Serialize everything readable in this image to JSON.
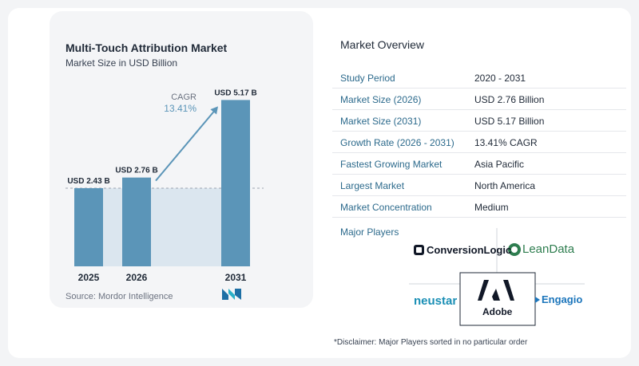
{
  "chart_data": {
    "type": "bar",
    "title": "Multi-Touch Attribution Market",
    "subtitle": "Market Size in USD Billion",
    "categories": [
      "2025",
      "2026",
      "2031"
    ],
    "values": [
      2.43,
      2.76,
      5.17
    ],
    "data_labels": [
      "USD 2.43 B",
      "USD 2.76 B",
      "USD 5.17 B"
    ],
    "cagr_label": "CAGR",
    "cagr_value": "13.41%",
    "ylim": [
      0,
      5.8
    ],
    "grid": false,
    "colors": {
      "bar": "#5b95b8",
      "bar_dark": "#3f7ea6",
      "arrow": "#5b95b8",
      "shade": "#dbe6ef"
    }
  },
  "source": "Source: Mordor Intelligence",
  "overview": {
    "title": "Market Overview",
    "rows": [
      {
        "label": "Study Period",
        "value": "2020 - 2031"
      },
      {
        "label": "Market Size (2026)",
        "value": "USD 2.76 Billion"
      },
      {
        "label": "Market Size (2031)",
        "value": "USD 5.17 Billion"
      },
      {
        "label": "Growth Rate (2026 - 2031)",
        "value": "13.41% CAGR"
      },
      {
        "label": "Fastest Growing Market",
        "value": "Asia Pacific"
      },
      {
        "label": "Largest Market",
        "value": "North America"
      },
      {
        "label": "Market Concentration",
        "value": "Medium"
      }
    ]
  },
  "major_players": {
    "title": "Major Players",
    "logos": [
      "ConversionLogic",
      "LeanData",
      "neustar",
      "Adobe",
      "Engagio"
    ]
  },
  "disclaimer": "*Disclaimer: Major Players sorted in no particular order"
}
